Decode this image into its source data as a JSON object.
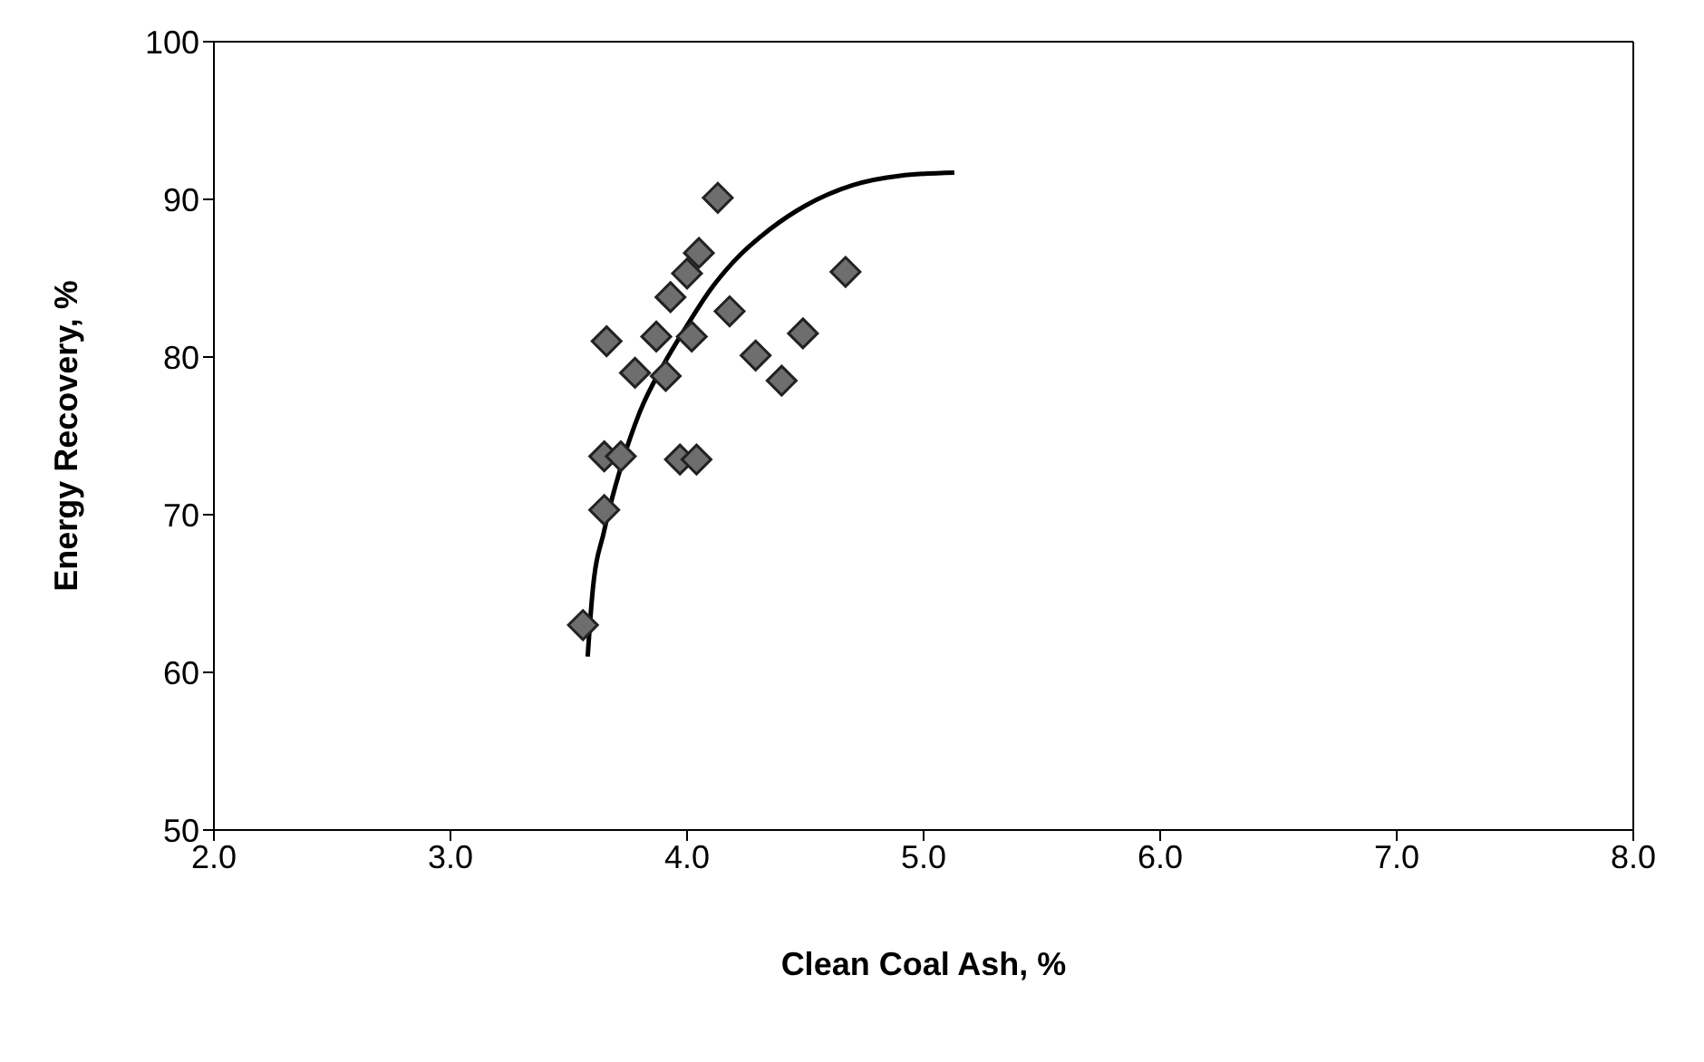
{
  "chart_data": {
    "type": "scatter",
    "xlabel": "Clean Coal Ash, %",
    "ylabel": "Energy Recovery, %",
    "xlim": [
      2,
      8
    ],
    "xticks": [
      {
        "value": 2,
        "label": "2.0"
      },
      {
        "value": 3,
        "label": "3.0"
      },
      {
        "value": 4,
        "label": "4.0"
      },
      {
        "value": 5,
        "label": "5.0"
      },
      {
        "value": 6,
        "label": "6.0"
      },
      {
        "value": 7,
        "label": "7.0"
      },
      {
        "value": 8,
        "label": "8.0"
      }
    ],
    "ylim": [
      50,
      100
    ],
    "yticks": [
      50,
      60,
      70,
      80,
      90,
      100
    ],
    "grid": false,
    "legend": false,
    "marker": "diamond",
    "series": [
      {
        "color": "#6e6e6e",
        "x": [
          3.56,
          3.65,
          3.65,
          3.72,
          3.97,
          4.04,
          3.66,
          3.78,
          3.87,
          3.91,
          3.93,
          4.0,
          4.05,
          4.13,
          4.02,
          4.18,
          4.29,
          4.4,
          4.49,
          4.67
        ],
        "values": [
          63,
          70.3,
          73.7,
          73.7,
          73.5,
          73.5,
          81,
          79,
          81.3,
          78.8,
          83.8,
          85.3,
          86.6,
          90.1,
          81.3,
          82.9,
          80.1,
          78.5,
          81.5,
          85.4
        ]
      },
      {
        "type": "line",
        "color": "#000000",
        "marker": "none",
        "x": [
          3.58,
          3.6,
          3.65,
          3.72,
          3.8,
          3.9,
          4.0,
          4.1,
          4.2,
          4.35,
          4.5,
          4.7,
          4.9,
          5.13
        ],
        "values": [
          61,
          65,
          69,
          73,
          76.5,
          79.5,
          82,
          84.3,
          86.1,
          88.1,
          89.6,
          90.9,
          91.5,
          91.7
        ]
      }
    ]
  }
}
